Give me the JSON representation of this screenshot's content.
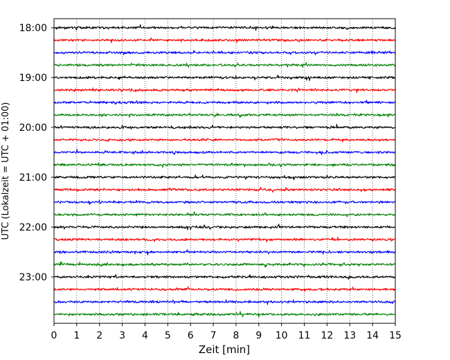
{
  "chart_data": {
    "type": "line",
    "title": "",
    "xlabel": "Zeit  [min]",
    "ylabel": "UTC (Lokalzeit = UTC + 01:00)",
    "xlim": [
      0,
      15
    ],
    "x_ticks": [
      "0",
      "1",
      "2",
      "3",
      "4",
      "5",
      "6",
      "7",
      "8",
      "9",
      "10",
      "11",
      "12",
      "13",
      "14",
      "15"
    ],
    "y_tick_labels": [
      "18:00",
      "19:00",
      "20:00",
      "21:00",
      "22:00",
      "23:00"
    ],
    "grid": "vertical dotted lines at each minute",
    "series_colors": [
      "#000000",
      "#ff0000",
      "#0000ff",
      "#008000"
    ],
    "traces": [
      {
        "start": "18:00",
        "color": "#000000"
      },
      {
        "start": "18:15",
        "color": "#ff0000"
      },
      {
        "start": "18:30",
        "color": "#0000ff"
      },
      {
        "start": "18:45",
        "color": "#008000"
      },
      {
        "start": "19:00",
        "color": "#000000"
      },
      {
        "start": "19:15",
        "color": "#ff0000"
      },
      {
        "start": "19:30",
        "color": "#0000ff"
      },
      {
        "start": "19:45",
        "color": "#008000"
      },
      {
        "start": "20:00",
        "color": "#000000"
      },
      {
        "start": "20:15",
        "color": "#ff0000"
      },
      {
        "start": "20:30",
        "color": "#0000ff"
      },
      {
        "start": "20:45",
        "color": "#008000"
      },
      {
        "start": "21:00",
        "color": "#000000"
      },
      {
        "start": "21:15",
        "color": "#ff0000"
      },
      {
        "start": "21:30",
        "color": "#0000ff"
      },
      {
        "start": "21:45",
        "color": "#008000"
      },
      {
        "start": "22:00",
        "color": "#000000"
      },
      {
        "start": "22:15",
        "color": "#ff0000"
      },
      {
        "start": "22:30",
        "color": "#0000ff"
      },
      {
        "start": "22:45",
        "color": "#008000"
      },
      {
        "start": "23:00",
        "color": "#000000"
      },
      {
        "start": "23:15",
        "color": "#ff0000"
      },
      {
        "start": "23:30",
        "color": "#0000ff"
      },
      {
        "start": "23:45",
        "color": "#008000"
      }
    ]
  }
}
